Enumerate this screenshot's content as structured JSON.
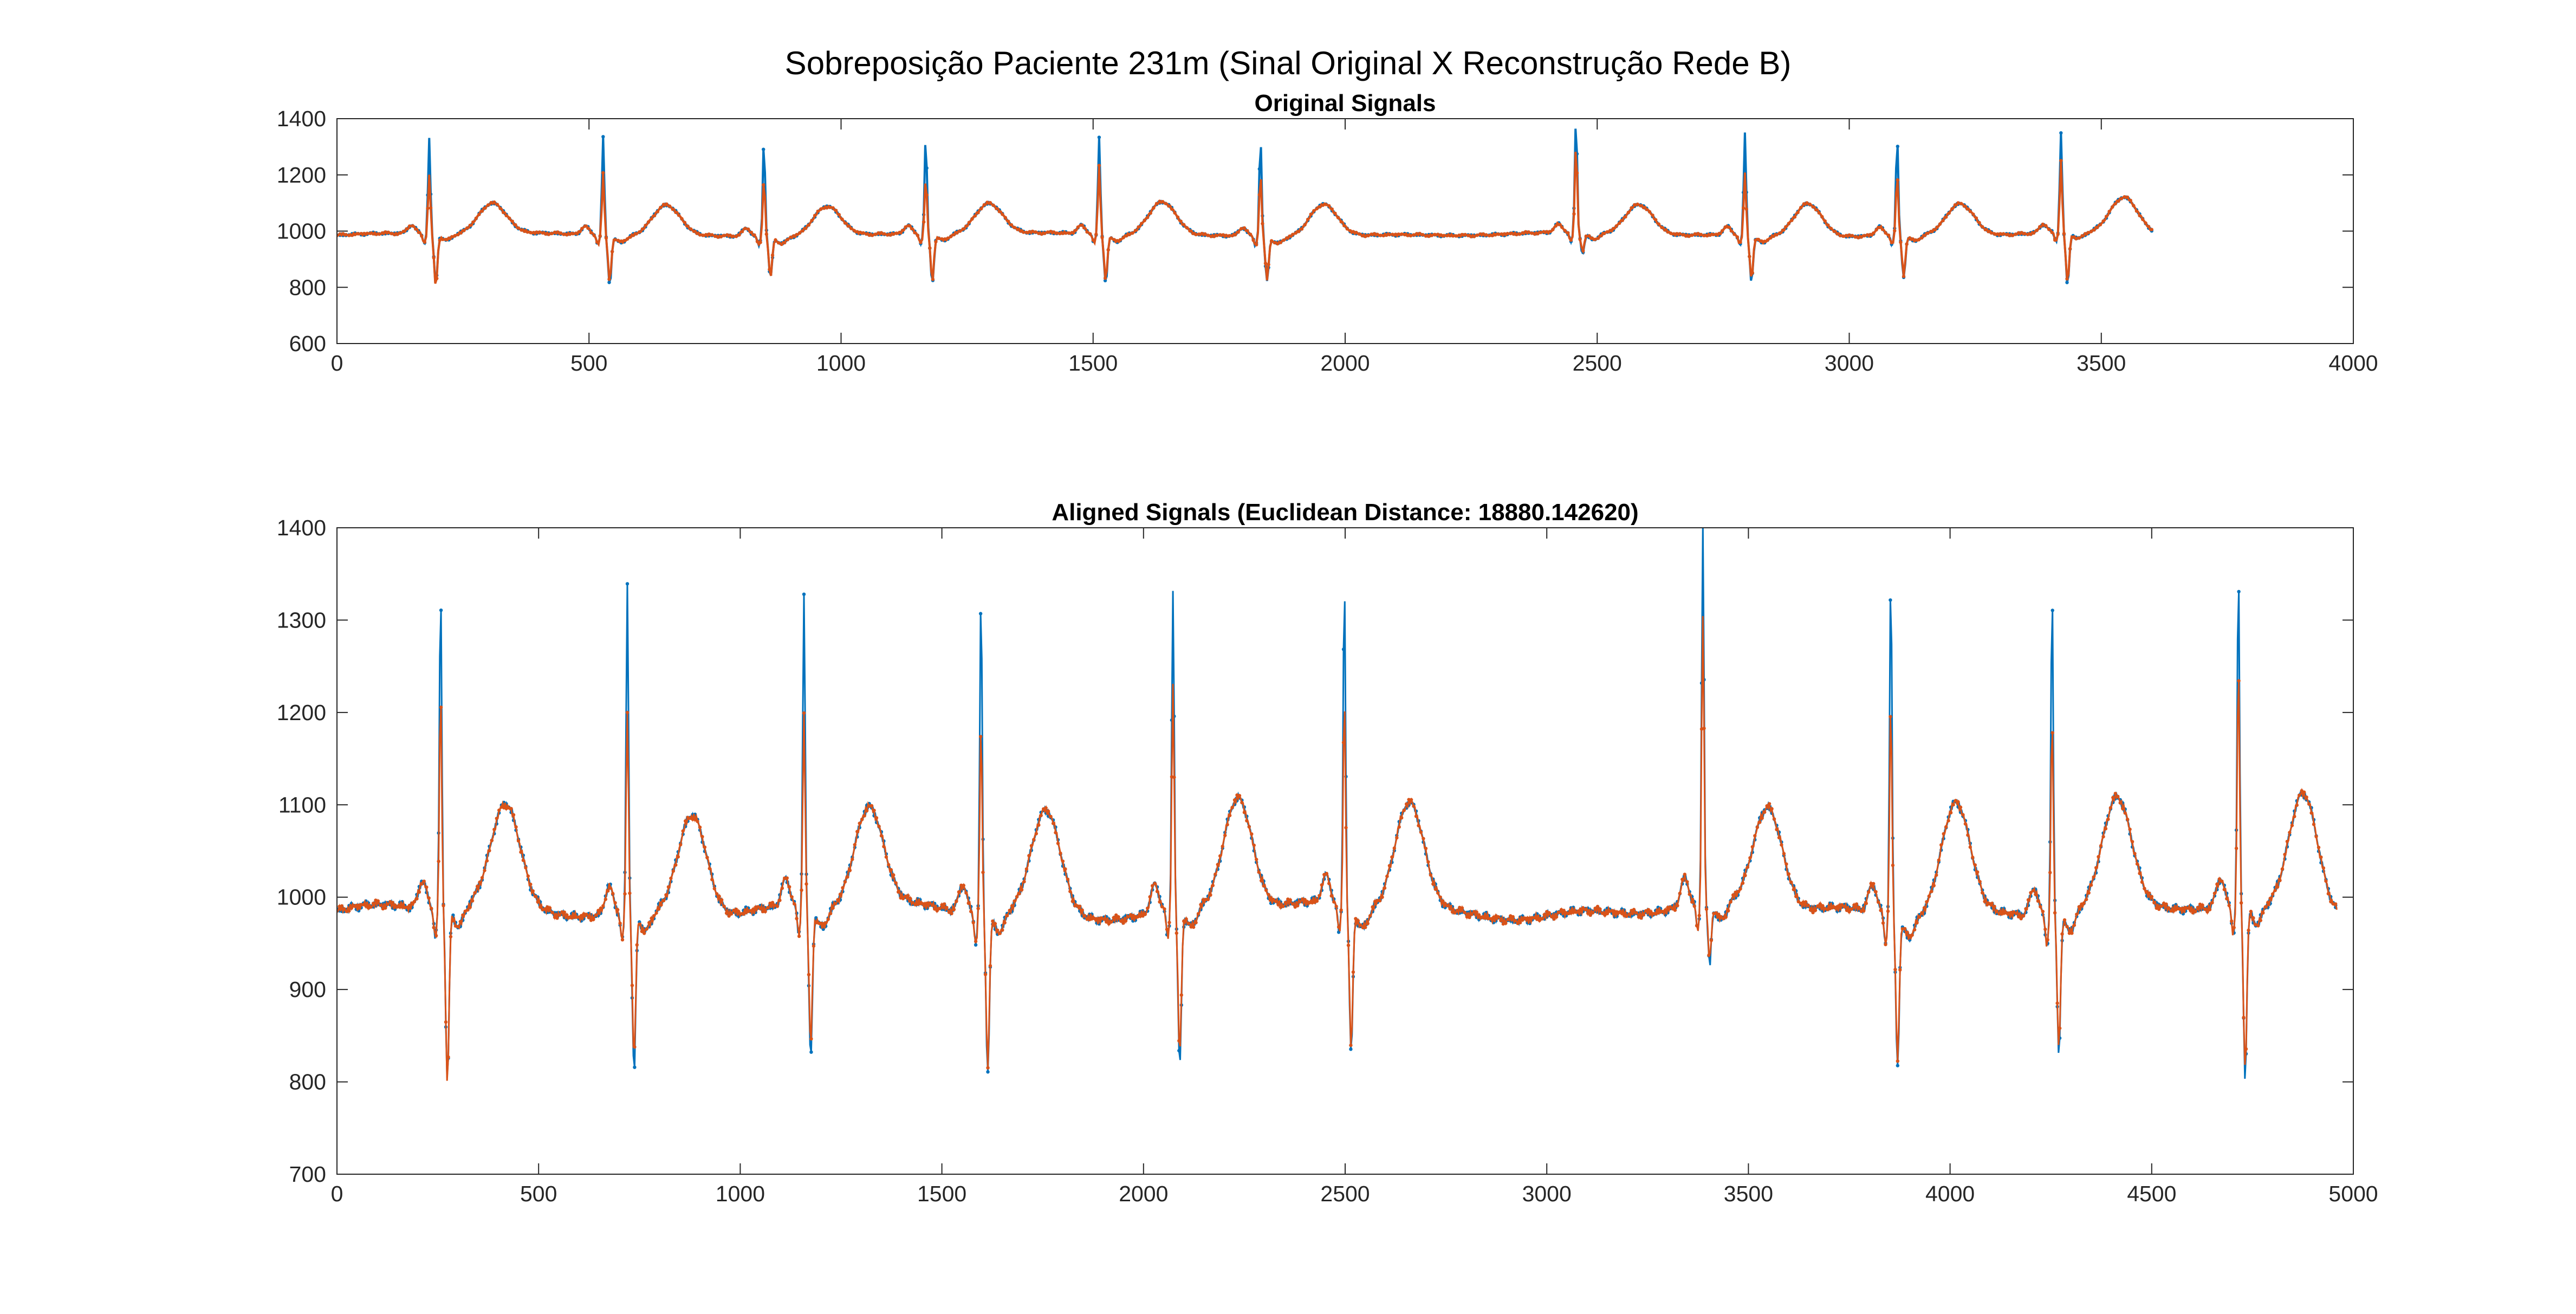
{
  "figure": {
    "title": "Sobreposição Paciente 231m (Sinal Original X Reconstrução Rede B)"
  },
  "colors": {
    "original": "#0072BD",
    "reconstruction": "#D95319",
    "axis": "#262626"
  },
  "chart_data": [
    {
      "type": "line",
      "title": "Original Signals",
      "xlabel": "",
      "ylabel": "",
      "xlim": [
        0,
        4000
      ],
      "ylim": [
        600,
        1400
      ],
      "xticks": [
        0,
        500,
        1000,
        1500,
        2000,
        2500,
        3000,
        3500,
        4000
      ],
      "yticks": [
        600,
        800,
        1000,
        1200,
        1400
      ],
      "grid": false,
      "markers": true,
      "x_max": 3600,
      "beats": [
        {
          "r": 183,
          "peak_a": 1325,
          "peak_b": 1200,
          "nadir_a": 808,
          "nadir_b": 800,
          "t": 1095
        },
        {
          "r": 528,
          "peak_a": 1338,
          "peak_b": 1205,
          "nadir_a": 813,
          "nadir_b": 830,
          "t": 1097
        },
        {
          "r": 847,
          "peak_a": 1328,
          "peak_b": 1195,
          "nadir_a": 840,
          "nadir_b": 845,
          "t": 1093
        },
        {
          "r": 1168,
          "peak_a": 1330,
          "peak_b": 1185,
          "nadir_a": 815,
          "nadir_b": 825,
          "t": 1095
        },
        {
          "r": 1512,
          "peak_a": 1333,
          "peak_b": 1230,
          "nadir_a": 815,
          "nadir_b": 830,
          "t": 1107
        },
        {
          "r": 1832,
          "peak_a": 1338,
          "peak_b": 1210,
          "nadir_a": 827,
          "nadir_b": 835,
          "t": 1103
        },
        {
          "r": 2458,
          "peak_a": 1393,
          "peak_b": 1300,
          "nadir_a": 915,
          "nadir_b": 925,
          "t": 1095
        },
        {
          "r": 2793,
          "peak_a": 1350,
          "peak_b": 1210,
          "nadir_a": 825,
          "nadir_b": 835,
          "t": 1107
        },
        {
          "r": 3095,
          "peak_a": 1330,
          "peak_b": 1200,
          "nadir_a": 836,
          "nadir_b": 845,
          "t": 1100
        },
        {
          "r": 3420,
          "peak_a": 1343,
          "peak_b": 1240,
          "nadir_a": 800,
          "nadir_b": 810,
          "t": 1118
        }
      ],
      "series": [
        {
          "name": "",
          "role": "original"
        },
        {
          "name": "",
          "role": "reconstruction"
        }
      ]
    },
    {
      "type": "line",
      "title": "Aligned Signals (Euclidean Distance: 18880.142620)",
      "xlabel": "",
      "ylabel": "",
      "xlim": [
        0,
        5000
      ],
      "ylim": [
        700,
        1400
      ],
      "xticks": [
        0,
        500,
        1000,
        1500,
        2000,
        2500,
        3000,
        3500,
        4000,
        4500,
        5000
      ],
      "yticks": [
        700,
        800,
        900,
        1000,
        1100,
        1200,
        1300,
        1400
      ],
      "grid": false,
      "markers": true,
      "x_max": 4960,
      "beats": [
        {
          "r": 257,
          "peak_a": 1328,
          "peak_b": 1215,
          "nadir_a": 800,
          "nadir_b": 800,
          "t": 1093
        },
        {
          "r": 720,
          "peak_a": 1340,
          "peak_b": 1205,
          "nadir_a": 813,
          "nadir_b": 830,
          "t": 1097
        },
        {
          "r": 1158,
          "peak_a": 1328,
          "peak_b": 1195,
          "nadir_a": 823,
          "nadir_b": 840,
          "t": 1093
        },
        {
          "r": 1597,
          "peak_a": 1330,
          "peak_b": 1185,
          "nadir_a": 815,
          "nadir_b": 825,
          "t": 1095
        },
        {
          "r": 2073,
          "peak_a": 1333,
          "peak_b": 1230,
          "nadir_a": 815,
          "nadir_b": 830,
          "t": 1108
        },
        {
          "r": 2498,
          "peak_a": 1338,
          "peak_b": 1210,
          "nadir_a": 827,
          "nadir_b": 835,
          "t": 1103
        },
        {
          "r": 3387,
          "peak_a": 1393,
          "peak_b": 1300,
          "nadir_a": 918,
          "nadir_b": 925,
          "t": 1095
        },
        {
          "r": 3853,
          "peak_a": 1350,
          "peak_b": 1210,
          "nadir_a": 825,
          "nadir_b": 835,
          "t": 1107
        },
        {
          "r": 4253,
          "peak_a": 1330,
          "peak_b": 1195,
          "nadir_a": 836,
          "nadir_b": 845,
          "t": 1100
        },
        {
          "r": 4715,
          "peak_a": 1343,
          "peak_b": 1240,
          "nadir_a": 800,
          "nadir_b": 810,
          "t": 1118
        }
      ],
      "series": [
        {
          "name": "",
          "role": "original"
        },
        {
          "name": "",
          "role": "reconstruction"
        }
      ]
    }
  ]
}
